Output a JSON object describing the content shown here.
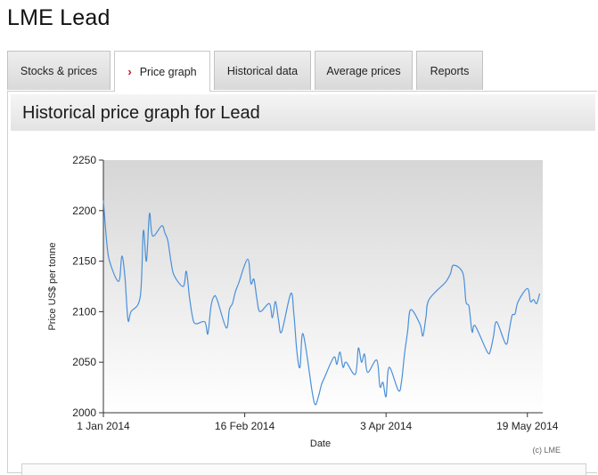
{
  "page": {
    "title": "LME Lead"
  },
  "tabs": [
    {
      "label": "Stocks & prices",
      "active": false
    },
    {
      "label": "Price graph",
      "active": true
    },
    {
      "label": "Historical data",
      "active": false
    },
    {
      "label": "Average prices",
      "active": false
    },
    {
      "label": "Reports",
      "active": false
    }
  ],
  "panel": {
    "title": "Historical price graph for Lead"
  },
  "colors": {
    "line": "#4a90d9",
    "plot_top": "#d6d6d6",
    "plot_bottom": "#ffffff",
    "tab_chevron": "#c8102e"
  },
  "chart_data": {
    "type": "line",
    "xlabel": "Date",
    "ylabel": "Price US$ per tonne",
    "ylim": [
      2000,
      2250
    ],
    "xlim": [
      "2014-01-01",
      "2014-05-24"
    ],
    "yticks": [
      2000,
      2050,
      2100,
      2150,
      2200,
      2250
    ],
    "xticks": [
      {
        "date": "2014-01-01",
        "label": "1 Jan 2014"
      },
      {
        "date": "2014-02-16",
        "label": "16 Feb 2014"
      },
      {
        "date": "2014-04-03",
        "label": "3 Apr 2014"
      },
      {
        "date": "2014-05-19",
        "label": "19 May 2014"
      }
    ],
    "credit": "(c) LME",
    "grid": false,
    "series": [
      {
        "x": [
          "2014-01-01",
          "2014-01-02",
          "2014-01-03",
          "2014-01-06",
          "2014-01-07",
          "2014-01-08",
          "2014-01-09",
          "2014-01-10",
          "2014-01-13",
          "2014-01-14",
          "2014-01-15",
          "2014-01-16",
          "2014-01-17",
          "2014-01-20",
          "2014-01-21",
          "2014-01-22",
          "2014-01-23",
          "2014-01-24",
          "2014-01-27",
          "2014-01-28",
          "2014-01-29",
          "2014-01-30",
          "2014-01-31",
          "2014-02-03",
          "2014-02-04",
          "2014-02-05",
          "2014-02-06",
          "2014-02-07",
          "2014-02-10",
          "2014-02-11",
          "2014-02-12",
          "2014-02-13",
          "2014-02-14",
          "2014-02-17",
          "2014-02-18",
          "2014-02-19",
          "2014-02-20",
          "2014-02-21",
          "2014-02-24",
          "2014-02-25",
          "2014-02-26",
          "2014-02-27",
          "2014-02-28",
          "2014-03-03",
          "2014-03-04",
          "2014-03-05",
          "2014-03-06",
          "2014-03-07",
          "2014-03-10",
          "2014-03-11",
          "2014-03-12",
          "2014-03-13",
          "2014-03-14",
          "2014-03-17",
          "2014-03-18",
          "2014-03-19",
          "2014-03-20",
          "2014-03-21",
          "2014-03-24",
          "2014-03-25",
          "2014-03-26",
          "2014-03-27",
          "2014-03-28",
          "2014-03-31",
          "2014-04-01",
          "2014-04-02",
          "2014-04-03",
          "2014-04-04",
          "2014-04-07",
          "2014-04-08",
          "2014-04-09",
          "2014-04-10",
          "2014-04-11",
          "2014-04-14",
          "2014-04-15",
          "2014-04-16",
          "2014-04-17",
          "2014-04-22",
          "2014-04-23",
          "2014-04-24",
          "2014-04-25",
          "2014-04-28",
          "2014-04-29",
          "2014-04-30",
          "2014-05-01",
          "2014-05-02",
          "2014-05-06",
          "2014-05-07",
          "2014-05-08",
          "2014-05-09",
          "2014-05-12",
          "2014-05-13",
          "2014-05-14",
          "2014-05-15",
          "2014-05-16",
          "2014-05-19",
          "2014-05-20",
          "2014-05-21",
          "2014-05-22",
          "2014-05-23"
        ],
        "values": [
          2210,
          2172,
          2150,
          2130,
          2155,
          2135,
          2092,
          2100,
          2115,
          2180,
          2150,
          2197,
          2175,
          2185,
          2178,
          2170,
          2150,
          2136,
          2125,
          2140,
          2115,
          2095,
          2088,
          2090,
          2078,
          2105,
          2115,
          2112,
          2084,
          2102,
          2108,
          2120,
          2128,
          2152,
          2128,
          2132,
          2112,
          2100,
          2108,
          2094,
          2110,
          2092,
          2080,
          2118,
          2098,
          2060,
          2045,
          2078,
          2020,
          2008,
          2016,
          2028,
          2035,
          2055,
          2048,
          2060,
          2045,
          2050,
          2038,
          2064,
          2050,
          2058,
          2040,
          2052,
          2026,
          2030,
          2016,
          2045,
          2022,
          2030,
          2058,
          2080,
          2102,
          2088,
          2076,
          2095,
          2112,
          2128,
          2132,
          2138,
          2146,
          2138,
          2110,
          2105,
          2080,
          2086,
          2060,
          2062,
          2076,
          2090,
          2068,
          2080,
          2096,
          2098,
          2110,
          2123,
          2110,
          2112,
          2108,
          2118
        ]
      }
    ]
  }
}
